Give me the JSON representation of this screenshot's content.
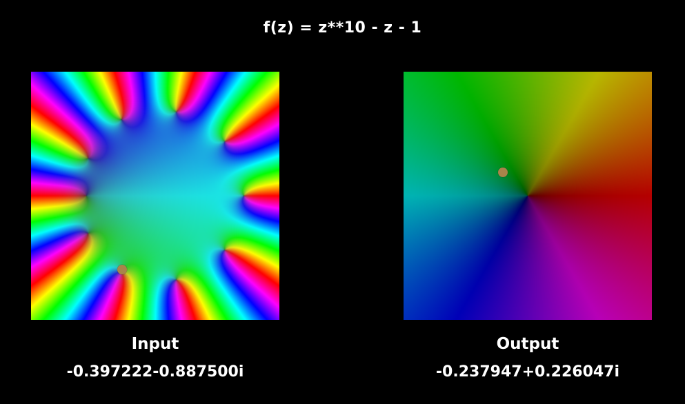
{
  "title": "f(z) = z**10 - z - 1",
  "input": {
    "label": "Input",
    "value": "-0.397222-0.887500i",
    "re": -0.397222,
    "im": -0.8875
  },
  "output": {
    "label": "Output",
    "value": "-0.237947+0.226047i",
    "re": -0.237947,
    "im": 0.226047
  },
  "colors": {
    "background": "#000000",
    "text": "#ffffff",
    "marker": "#a8844a"
  }
}
